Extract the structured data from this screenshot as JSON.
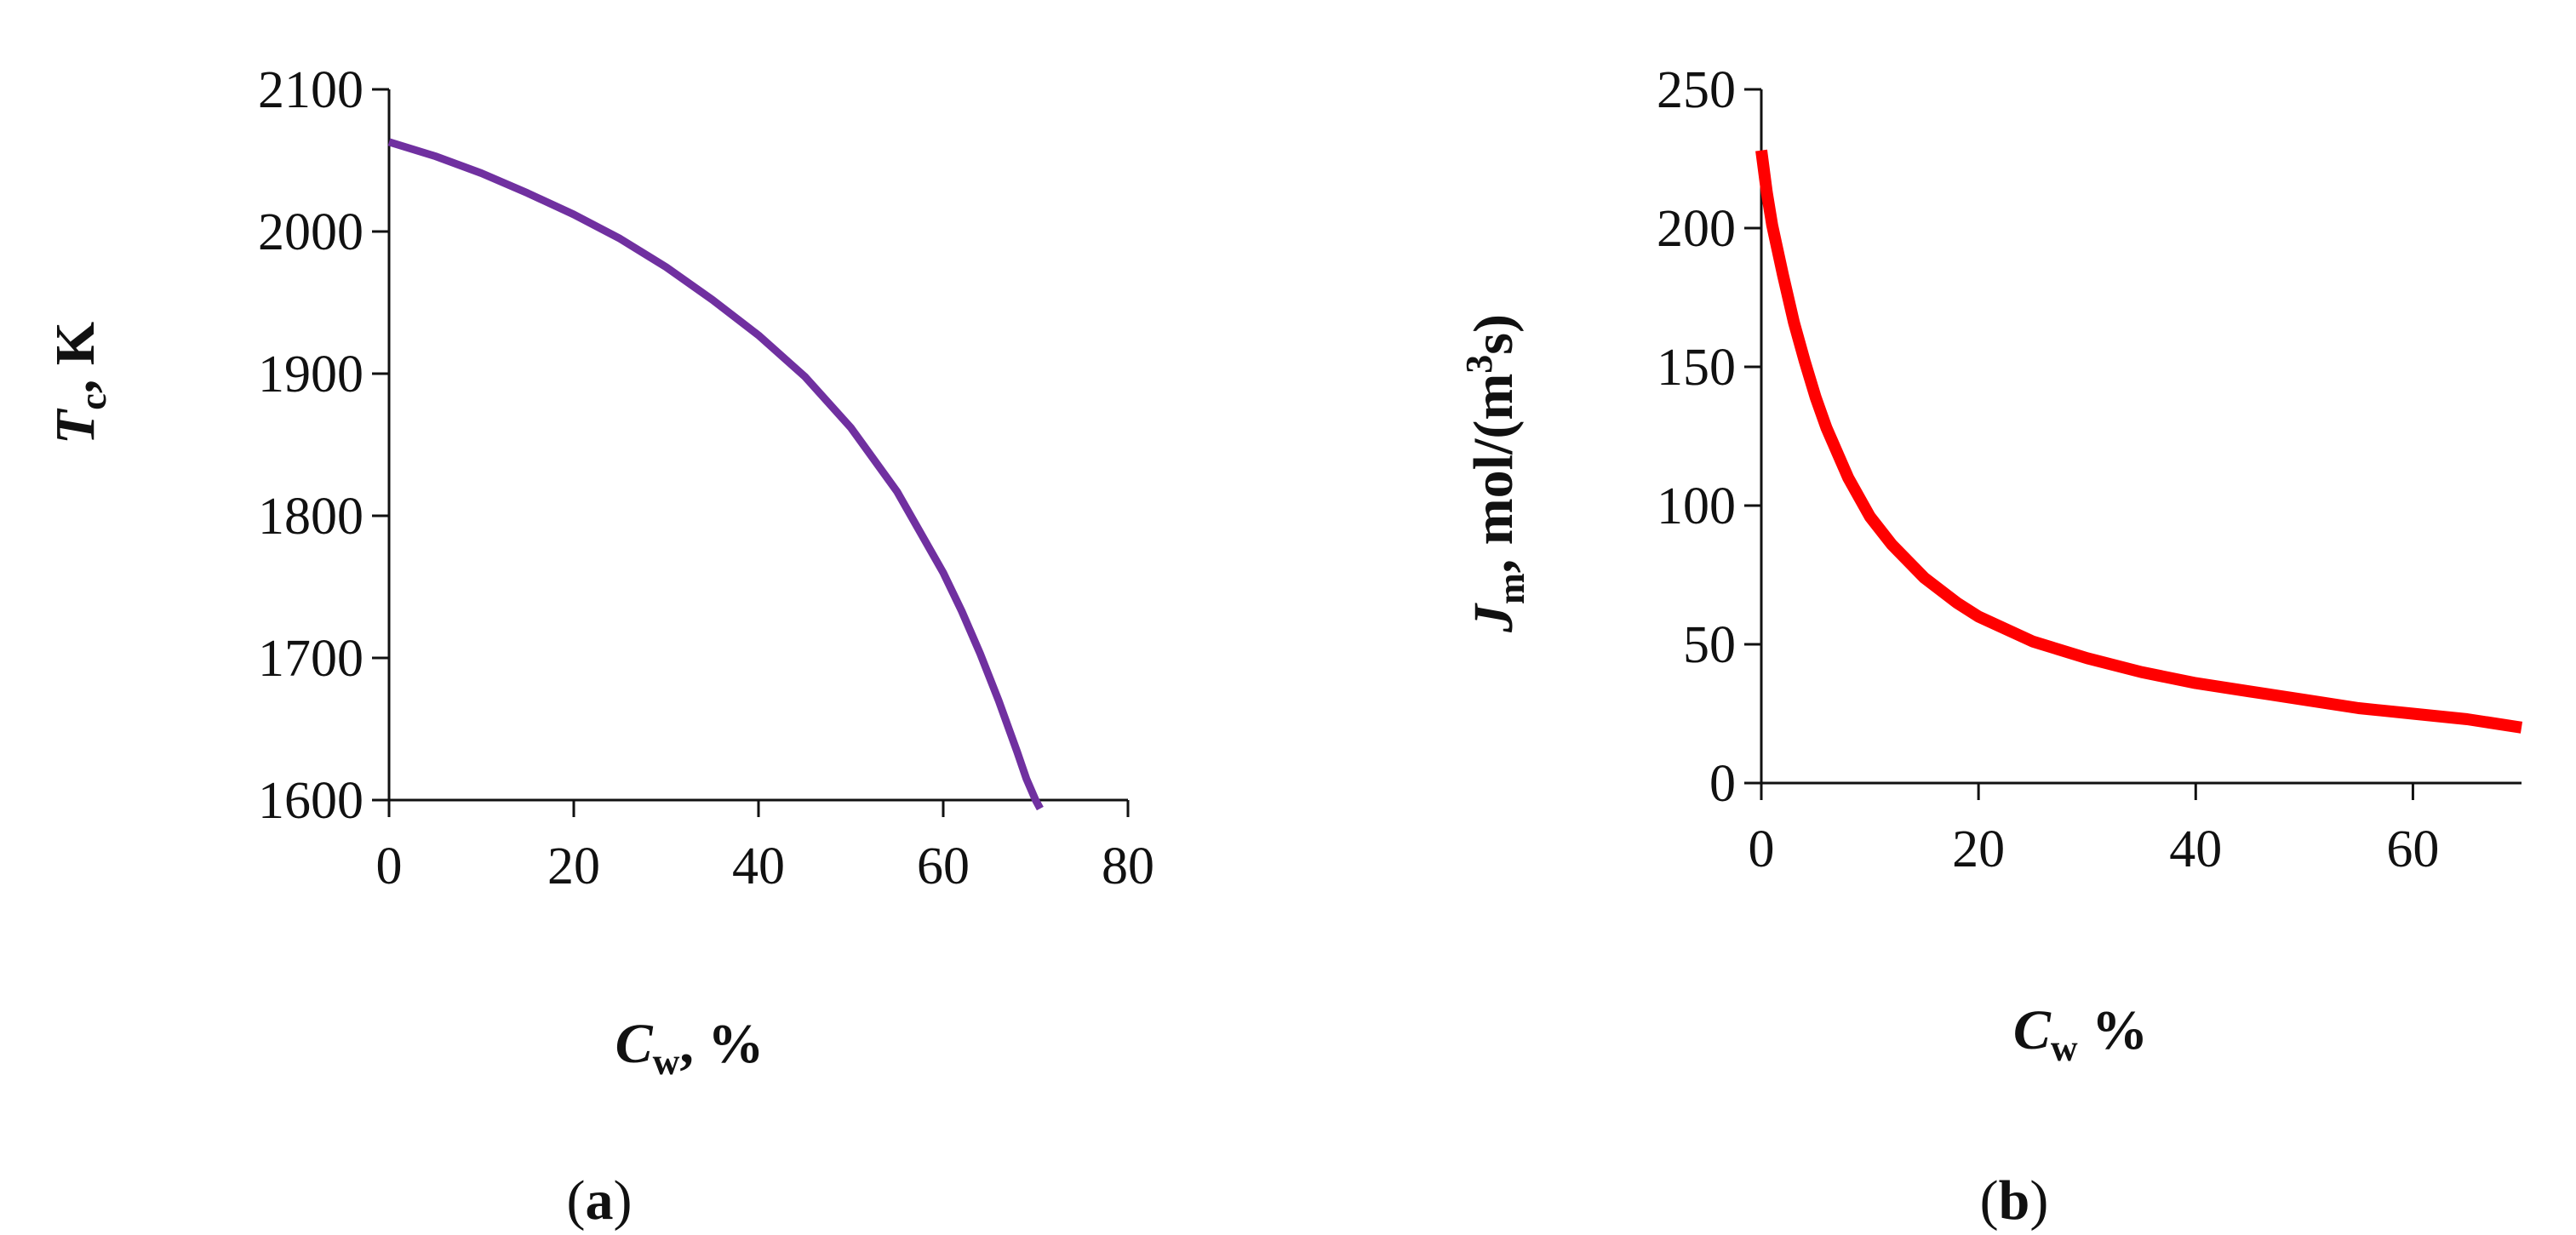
{
  "chart_data": [
    {
      "type": "line",
      "panel": {
        "open": "(",
        "letter": "a",
        "close": ")"
      },
      "xlim": [
        0,
        80
      ],
      "ylim": [
        1600,
        2100
      ],
      "xticks": [
        "0",
        "20",
        "40",
        "60",
        "80"
      ],
      "yticks": [
        "1600",
        "1700",
        "1800",
        "1900",
        "2000",
        "2100"
      ],
      "xlabel": {
        "sym": "C",
        "sub": "w",
        "rest": ", %"
      },
      "ylabel": {
        "sym": "T",
        "sub": "c",
        "rest": ", K"
      },
      "color": "#7030A0",
      "series": [
        {
          "name": "Tc",
          "x": [
            0,
            5,
            10,
            15,
            20,
            25,
            30,
            35,
            40,
            45,
            50,
            55,
            60,
            62,
            64,
            66,
            68,
            69,
            70,
            70.5
          ],
          "y": [
            2063,
            2053,
            2041,
            2027,
            2012,
            1995,
            1975,
            1952,
            1927,
            1898,
            1862,
            1817,
            1760,
            1733,
            1703,
            1670,
            1634,
            1615,
            1600,
            1594
          ]
        }
      ]
    },
    {
      "type": "line",
      "panel": {
        "open": "(",
        "letter": "b",
        "close": ")"
      },
      "xlim": [
        0,
        70
      ],
      "ylim": [
        0,
        250
      ],
      "xticks": [
        "0",
        "20",
        "40",
        "60"
      ],
      "yticks": [
        "0",
        "50",
        "100",
        "150",
        "200",
        "250"
      ],
      "xlabel": {
        "sym": "C",
        "sub": "w",
        "rest": " %"
      },
      "ylabel": {
        "sym": "J",
        "sub": "m",
        "rest": ", mol/(m",
        "sup": "3",
        "rest2": "s)"
      },
      "color": "#FF0000",
      "series": [
        {
          "name": "Jm",
          "x": [
            0,
            0.5,
            1,
            2,
            3,
            4,
            5,
            6,
            8,
            10,
            12,
            15,
            18,
            20,
            25,
            30,
            35,
            40,
            45,
            50,
            55,
            60,
            65,
            70
          ],
          "y": [
            228,
            213,
            201,
            183,
            166,
            152,
            139,
            128,
            110,
            96,
            86,
            74,
            65,
            60,
            51,
            45,
            40,
            36,
            33,
            30,
            27,
            25,
            23,
            20
          ]
        }
      ]
    }
  ]
}
